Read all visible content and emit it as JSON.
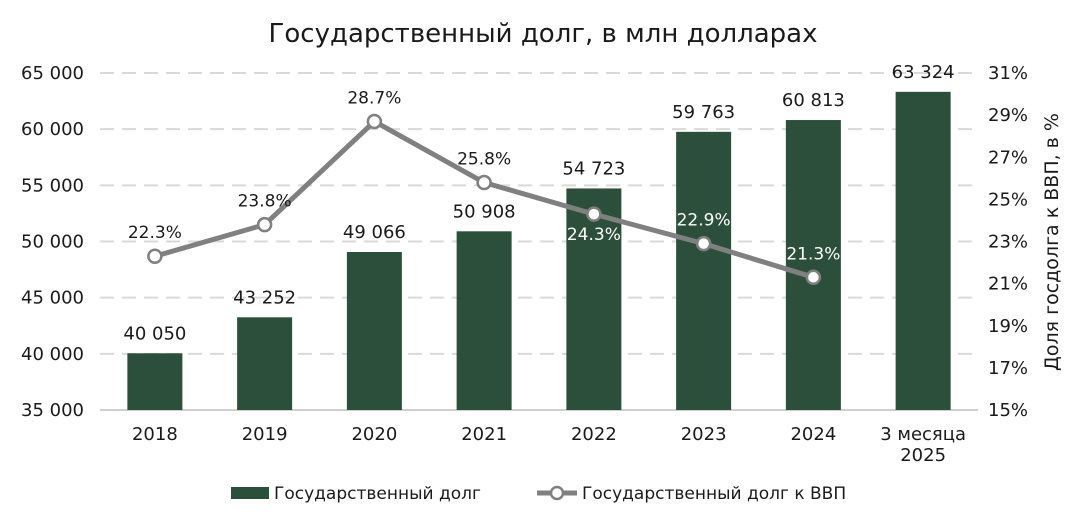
{
  "chart_data": {
    "type": "bar",
    "title": "Государственный долг, в млн долларах",
    "categories": [
      "2018",
      "2019",
      "2020",
      "2021",
      "2022",
      "2023",
      "2024",
      "3 месяца 2025"
    ],
    "series": [
      {
        "name": "Государственный долг",
        "type": "bar",
        "axis": "left",
        "color": "#2b4f3a",
        "values": [
          40050,
          43252,
          49066,
          50908,
          54723,
          59763,
          60813,
          63324
        ],
        "labels": [
          "40 050",
          "43 252",
          "49 066",
          "50 908",
          "54 723",
          "59 763",
          "60 813",
          "63 324"
        ]
      },
      {
        "name": "Государственный долг к ВВП",
        "type": "line",
        "axis": "right",
        "color": "#808080",
        "values": [
          22.3,
          23.8,
          28.7,
          25.8,
          24.3,
          22.9,
          21.3,
          null
        ],
        "labels": [
          "22.3%",
          "23.8%",
          "28.7%",
          "25.8%",
          "24.3%",
          "22.9%",
          "21.3%",
          ""
        ]
      }
    ],
    "ylim": [
      35000,
      65000
    ],
    "yticks": [
      "35 000",
      "40 000",
      "45 000",
      "50 000",
      "55 000",
      "60 000",
      "65 000"
    ],
    "y2lim": [
      15,
      31
    ],
    "y2ticks": [
      "15%",
      "17%",
      "19%",
      "21%",
      "23%",
      "25%",
      "27%",
      "29%",
      "31%"
    ],
    "ylabel": "",
    "y2label": "Доля госдолга к ВВП, в %",
    "xlabel": "",
    "grid": true,
    "legend": "bottom"
  }
}
